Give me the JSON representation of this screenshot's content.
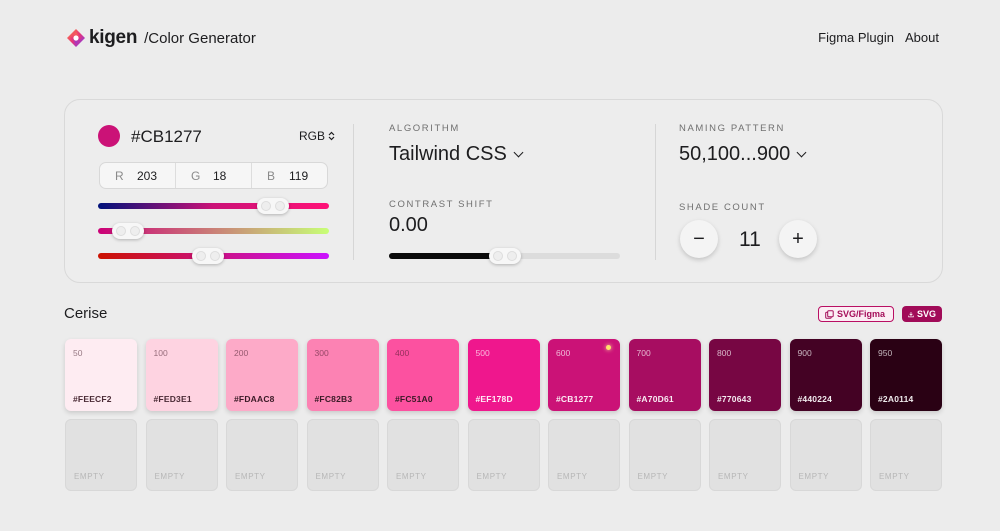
{
  "header": {
    "logo_text": "kigen",
    "subtitle": "/Color Generator",
    "nav": [
      "Figma Plugin",
      "About"
    ]
  },
  "color_input": {
    "hex": "#CB1277",
    "mode": "RGB",
    "r_label": "R",
    "r_value": "203",
    "g_label": "G",
    "g_value": "18",
    "b_label": "B",
    "b_value": "119",
    "slider_levels": [
      0.8,
      0.07,
      0.47
    ]
  },
  "algorithm": {
    "label": "ALGORITHM",
    "value": "Tailwind CSS"
  },
  "contrast": {
    "label": "CONTRAST SHIFT",
    "value": "0.00",
    "level": 0.5
  },
  "naming": {
    "label": "NAMING PATTERN",
    "value": "50,100...900"
  },
  "shades": {
    "label": "SHADE COUNT",
    "minus": "−",
    "plus": "+",
    "value": "11"
  },
  "palette": {
    "name": "Cerise",
    "export_figma": "SVG/Figma",
    "export_svg": "SVG",
    "swatches": [
      {
        "step": "50",
        "hex": "#FEECF2"
      },
      {
        "step": "100",
        "hex": "#FED3E1"
      },
      {
        "step": "200",
        "hex": "#FDAAC8"
      },
      {
        "step": "300",
        "hex": "#FC82B3"
      },
      {
        "step": "400",
        "hex": "#FC51A0"
      },
      {
        "step": "500",
        "hex": "#EF178D"
      },
      {
        "step": "600",
        "hex": "#CB1277"
      },
      {
        "step": "700",
        "hex": "#A70D61"
      },
      {
        "step": "800",
        "hex": "#770643"
      },
      {
        "step": "900",
        "hex": "#440224"
      },
      {
        "step": "950",
        "hex": "#2A0114"
      }
    ],
    "empty_label": "EMPTY"
  },
  "colors": {
    "accent": "#CB1277",
    "export_dark": "#A10B58"
  }
}
